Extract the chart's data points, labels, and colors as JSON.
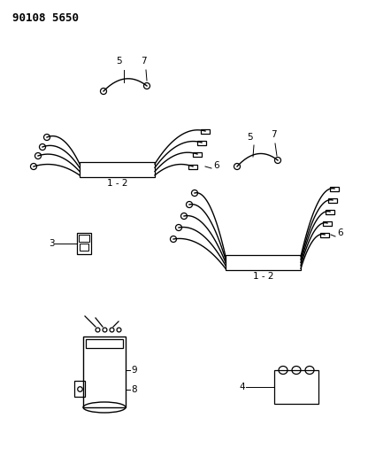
{
  "title": "90108 5650",
  "bg_color": "#ffffff",
  "line_color": "#000000",
  "title_fontsize": 9,
  "label_fontsize": 7.5,
  "figsize": [
    4.16,
    5.33
  ],
  "dpi": 100
}
